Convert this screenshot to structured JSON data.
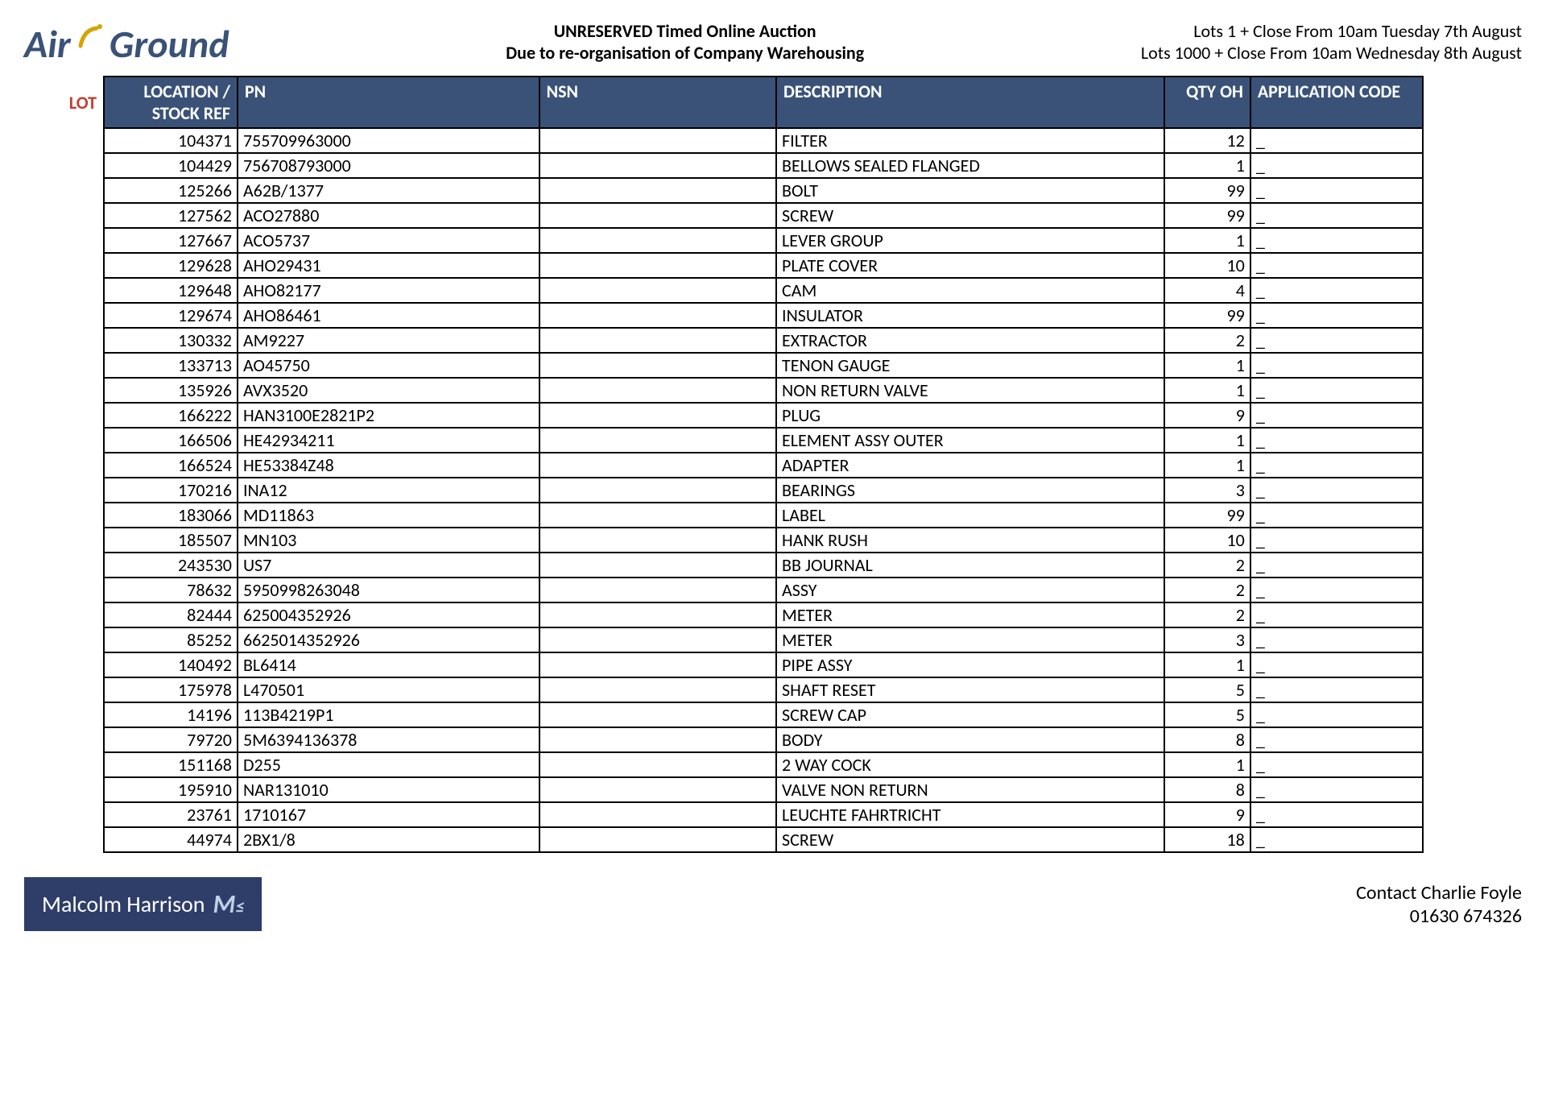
{
  "logo": {
    "part1": "Air",
    "part2": "Ground"
  },
  "header": {
    "title1": "UNRESERVED Timed Online Auction",
    "title2": "Due to re-organisation of Company Warehousing",
    "close1": "Lots 1 + Close From 10am Tuesday 7th August",
    "close2": "Lots 1000 + Close From 10am Wednesday 8th August"
  },
  "lot_label": "LOT",
  "columns": {
    "loc": "LOCATION / STOCK REF",
    "pn": "PN",
    "nsn": "NSN",
    "desc": "DESCRIPTION",
    "qty": "QTY OH",
    "app": "APPLICATION CODE"
  },
  "rows": [
    {
      "loc": "104371",
      "pn": "755709963000",
      "nsn": "",
      "desc": "FILTER",
      "qty": "12",
      "app": "_"
    },
    {
      "loc": "104429",
      "pn": "756708793000",
      "nsn": "",
      "desc": "BELLOWS SEALED FLANGED",
      "qty": "1",
      "app": "_"
    },
    {
      "loc": "125266",
      "pn": "A62B/1377",
      "nsn": "",
      "desc": "BOLT",
      "qty": "99",
      "app": "_"
    },
    {
      "loc": "127562",
      "pn": "ACO27880",
      "nsn": "",
      "desc": "SCREW",
      "qty": "99",
      "app": "_"
    },
    {
      "loc": "127667",
      "pn": "ACO5737",
      "nsn": "",
      "desc": "LEVER GROUP",
      "qty": "1",
      "app": "_"
    },
    {
      "loc": "129628",
      "pn": "AHO29431",
      "nsn": "",
      "desc": "PLATE COVER",
      "qty": "10",
      "app": "_"
    },
    {
      "loc": "129648",
      "pn": "AHO82177",
      "nsn": "",
      "desc": "CAM",
      "qty": "4",
      "app": "_"
    },
    {
      "loc": "129674",
      "pn": "AHO86461",
      "nsn": "",
      "desc": "INSULATOR",
      "qty": "99",
      "app": "_"
    },
    {
      "loc": "130332",
      "pn": "AM9227",
      "nsn": "",
      "desc": "EXTRACTOR",
      "qty": "2",
      "app": "_"
    },
    {
      "loc": "133713",
      "pn": "AO45750",
      "nsn": "",
      "desc": "TENON GAUGE",
      "qty": "1",
      "app": "_"
    },
    {
      "loc": "135926",
      "pn": "AVX3520",
      "nsn": "",
      "desc": "NON RETURN VALVE",
      "qty": "1",
      "app": "_"
    },
    {
      "loc": "166222",
      "pn": "HAN3100E2821P2",
      "nsn": "",
      "desc": "PLUG",
      "qty": "9",
      "app": "_"
    },
    {
      "loc": "166506",
      "pn": "HE42934211",
      "nsn": "",
      "desc": "ELEMENT ASSY OUTER",
      "qty": "1",
      "app": "_"
    },
    {
      "loc": "166524",
      "pn": "HE53384Z48",
      "nsn": "",
      "desc": "ADAPTER",
      "qty": "1",
      "app": "_"
    },
    {
      "loc": "170216",
      "pn": "INA12",
      "nsn": "",
      "desc": "BEARINGS",
      "qty": "3",
      "app": "_"
    },
    {
      "loc": "183066",
      "pn": "MD11863",
      "nsn": "",
      "desc": "LABEL",
      "qty": "99",
      "app": "_"
    },
    {
      "loc": "185507",
      "pn": "MN103",
      "nsn": "",
      "desc": "HANK RUSH",
      "qty": "10",
      "app": "_"
    },
    {
      "loc": "243530",
      "pn": "US7",
      "nsn": "",
      "desc": "BB JOURNAL",
      "qty": "2",
      "app": "_"
    },
    {
      "loc": "78632",
      "pn": "5950998263048",
      "nsn": "",
      "desc": "ASSY",
      "qty": "2",
      "app": "_"
    },
    {
      "loc": "82444",
      "pn": "625004352926",
      "nsn": "",
      "desc": "METER",
      "qty": "2",
      "app": "_"
    },
    {
      "loc": "85252",
      "pn": "6625014352926",
      "nsn": "",
      "desc": "METER",
      "qty": "3",
      "app": "_"
    },
    {
      "loc": "140492",
      "pn": "BL6414",
      "nsn": "",
      "desc": "PIPE ASSY",
      "qty": "1",
      "app": "_"
    },
    {
      "loc": "175978",
      "pn": "L470501",
      "nsn": "",
      "desc": "SHAFT RESET",
      "qty": "5",
      "app": "_"
    },
    {
      "loc": "14196",
      "pn": "113B4219P1",
      "nsn": "",
      "desc": "SCREW CAP",
      "qty": "5",
      "app": "_"
    },
    {
      "loc": "79720",
      "pn": "5M6394136378",
      "nsn": "",
      "desc": "BODY",
      "qty": "8",
      "app": "_"
    },
    {
      "loc": "151168",
      "pn": "D255",
      "nsn": "",
      "desc": "2 WAY COCK",
      "qty": "1",
      "app": "_"
    },
    {
      "loc": "195910",
      "pn": "NAR131010",
      "nsn": "",
      "desc": "VALVE NON RETURN",
      "qty": "8",
      "app": "_"
    },
    {
      "loc": "23761",
      "pn": "1710167",
      "nsn": "",
      "desc": "LEUCHTE FAHRTRICHT",
      "qty": "9",
      "app": "_"
    },
    {
      "loc": "44974",
      "pn": "2BX1/8",
      "nsn": "",
      "desc": "SCREW",
      "qty": "18",
      "app": "_"
    }
  ],
  "footer": {
    "logo_text": "Malcolm Harrison",
    "contact1": "Contact Charlie Foyle",
    "contact2": "01630 674326"
  },
  "colors": {
    "header_bg": "#3a5278",
    "header_fg": "#ffffff",
    "lot_color": "#c04030",
    "footer_bg": "#2e3e68"
  }
}
